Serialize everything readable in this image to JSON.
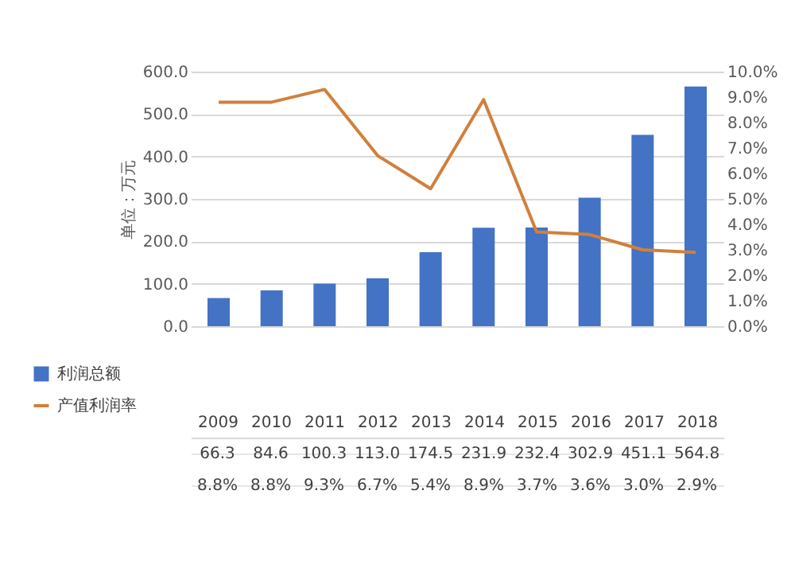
{
  "chart_data": {
    "type": "bar",
    "ylabel": "单位：万元",
    "categories": [
      "2009",
      "2010",
      "2011",
      "2012",
      "2013",
      "2014",
      "2015",
      "2016",
      "2017",
      "2018"
    ],
    "series": [
      {
        "name": "利润总额",
        "color": "#4472c4",
        "values": [
          66.3,
          84.6,
          100.3,
          113.0,
          174.5,
          231.9,
          232.4,
          302.9,
          451.1,
          564.8
        ],
        "value_labels": [
          "66.3",
          "84.6",
          "100.3",
          "113.0",
          "174.5",
          "231.9",
          "232.4",
          "302.9",
          "451.1",
          "564.8"
        ]
      },
      {
        "name": "产值利润率",
        "type": "line",
        "axis": "y2",
        "color": "#d0803c",
        "values": [
          8.8,
          8.8,
          9.3,
          6.7,
          5.4,
          8.9,
          3.7,
          3.6,
          3.0,
          2.9
        ],
        "value_labels": [
          "8.8%",
          "8.8%",
          "9.3%",
          "6.7%",
          "5.4%",
          "8.9%",
          "3.7%",
          "3.6%",
          "3.0%",
          "2.9%"
        ]
      }
    ],
    "ylim": [
      0,
      600
    ],
    "yticks": [
      {
        "value": 0,
        "label": "0.0"
      },
      {
        "value": 100,
        "label": "100.0"
      },
      {
        "value": 200,
        "label": "200.0"
      },
      {
        "value": 300,
        "label": "300.0"
      },
      {
        "value": 400,
        "label": "400.0"
      },
      {
        "value": 500,
        "label": "500.0"
      },
      {
        "value": 600,
        "label": "600.0"
      }
    ],
    "y2lim": [
      0,
      10
    ],
    "y2ticks": [
      {
        "value": 0,
        "label": "0.0%"
      },
      {
        "value": 1,
        "label": "1.0%"
      },
      {
        "value": 2,
        "label": "2.0%"
      },
      {
        "value": 3,
        "label": "3.0%"
      },
      {
        "value": 4,
        "label": "4.0%"
      },
      {
        "value": 5,
        "label": "5.0%"
      },
      {
        "value": 6,
        "label": "6.0%"
      },
      {
        "value": 7,
        "label": "7.0%"
      },
      {
        "value": 8,
        "label": "8.0%"
      },
      {
        "value": 9,
        "label": "9.0%"
      },
      {
        "value": 10,
        "label": "10.0%"
      }
    ],
    "grid": "y",
    "legend": "bottom left",
    "data_labels": true
  }
}
